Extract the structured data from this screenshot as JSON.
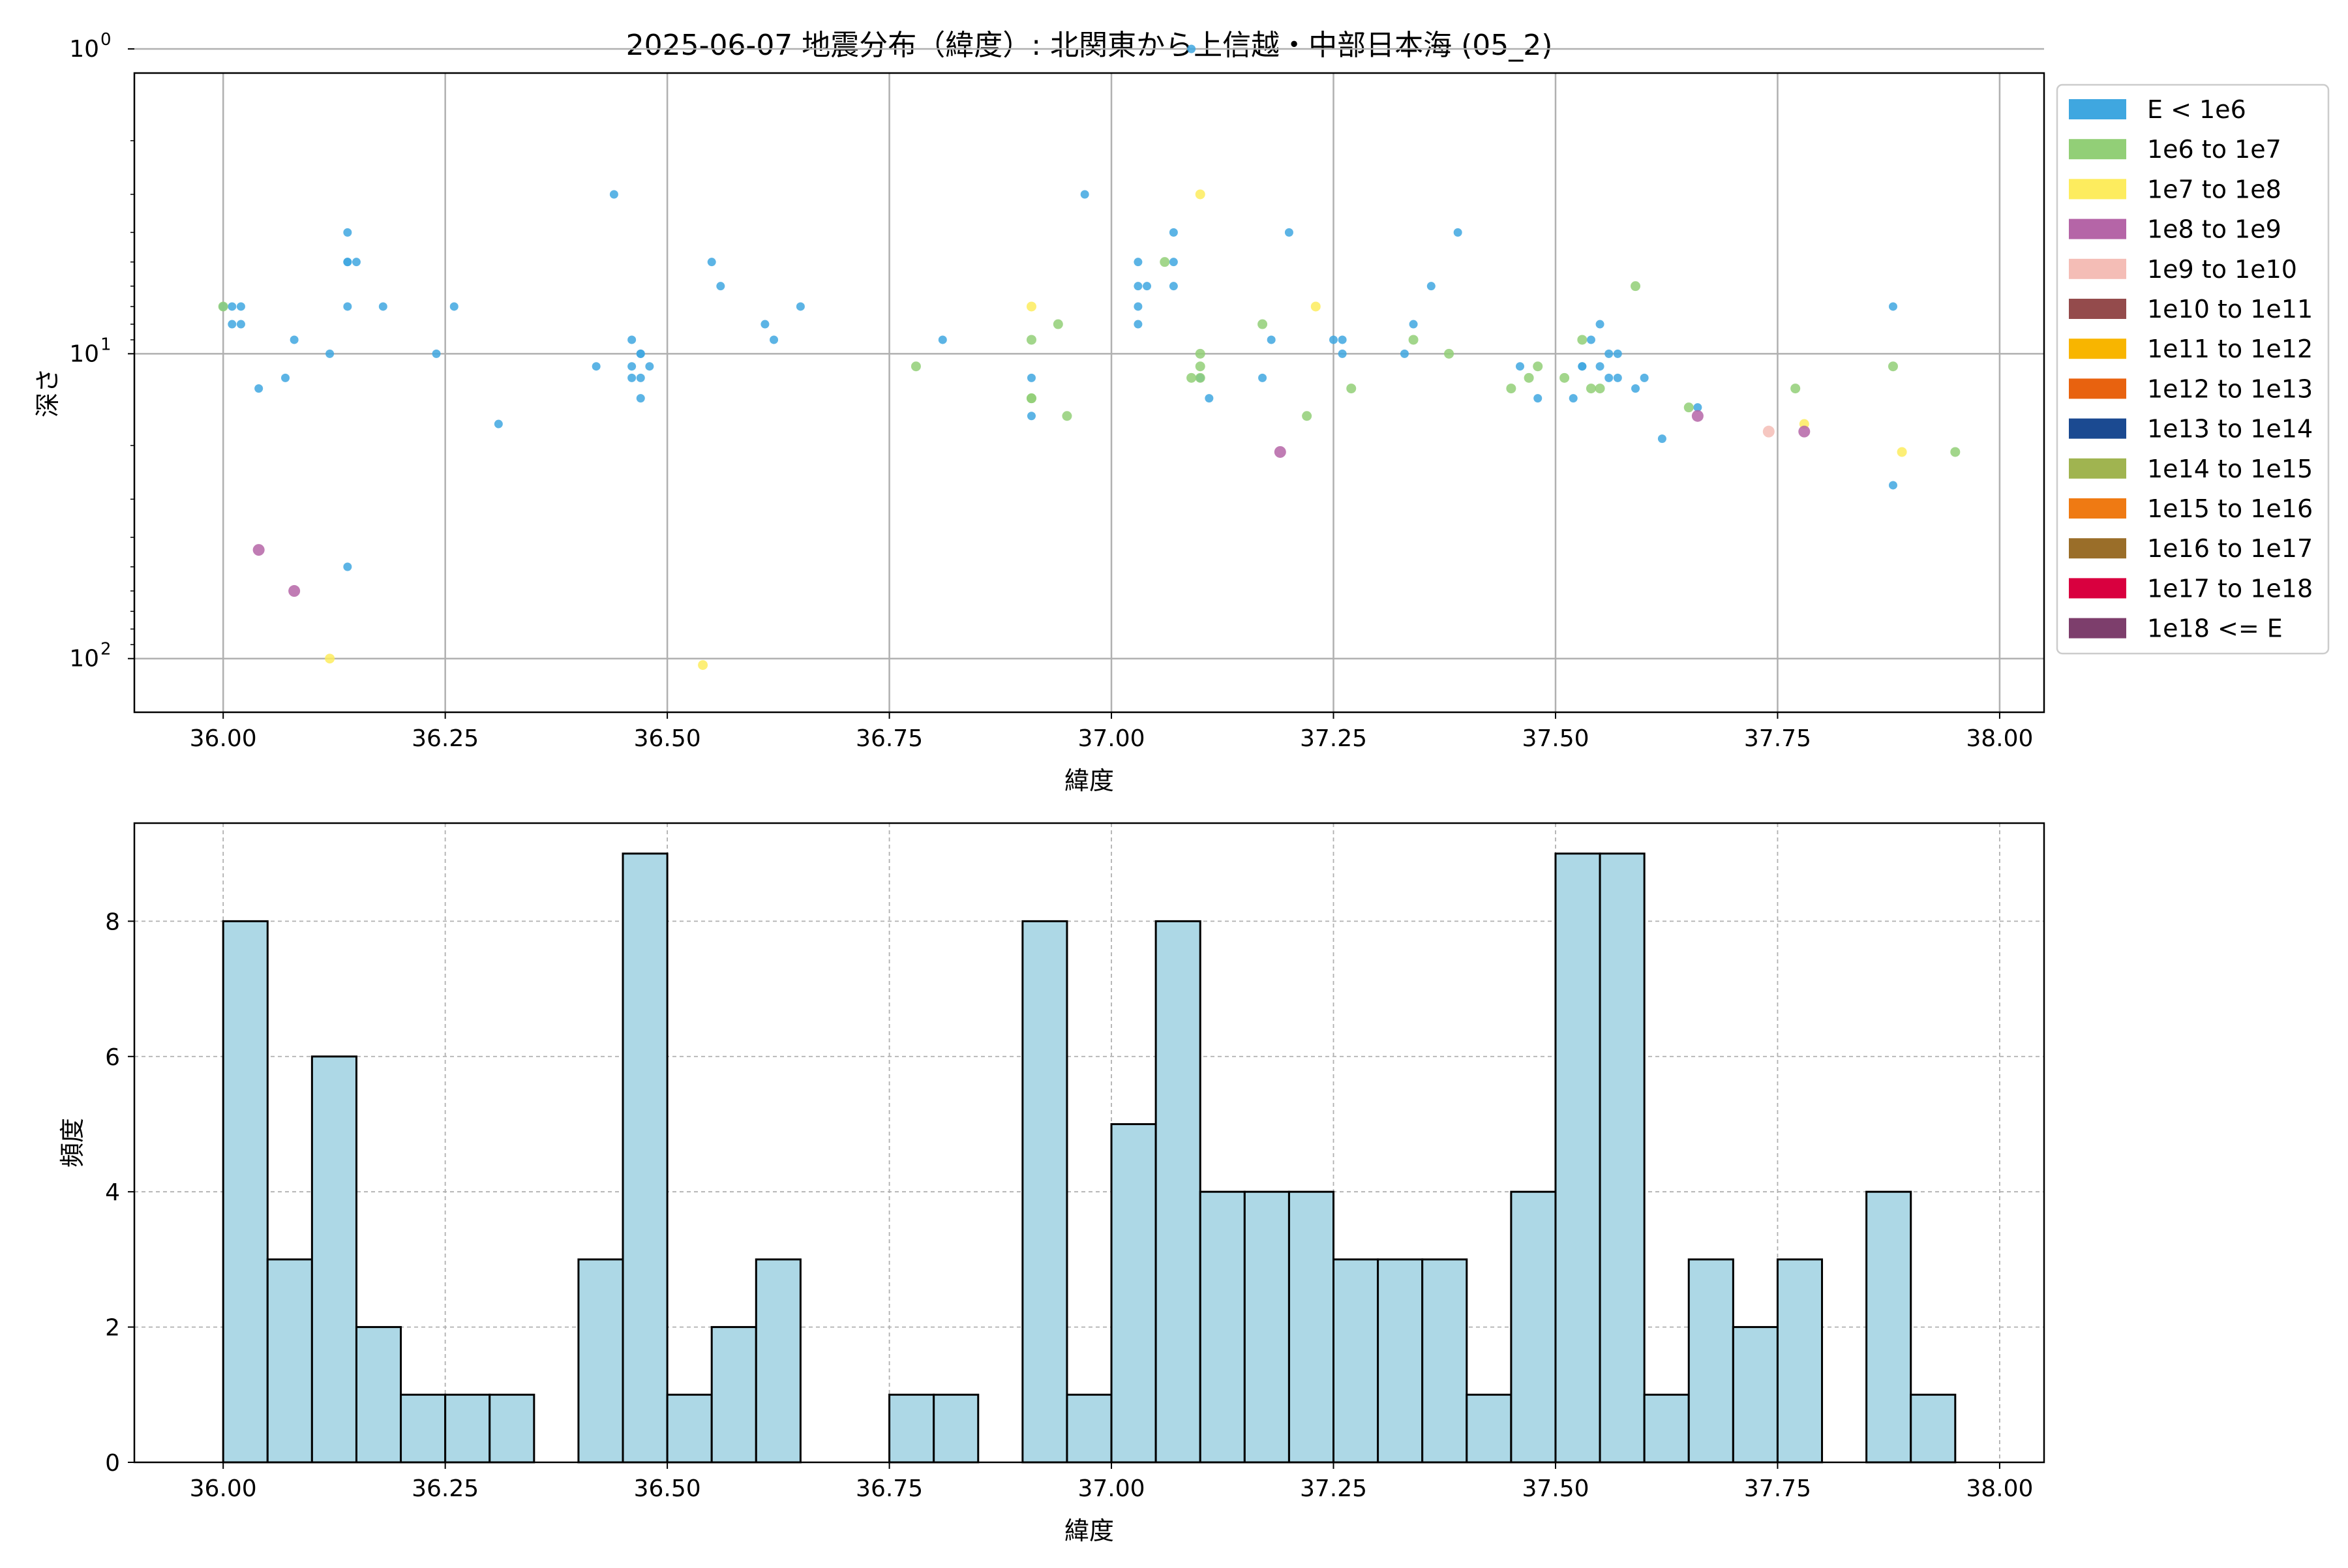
{
  "figure": {
    "title": "2025-06-07 地震分布（緯度）: 北関東から上信越・中部日本海 (05_2)"
  },
  "chart_data": [
    {
      "type": "scatter",
      "xlabel": "緯度",
      "ylabel": "深さ",
      "x_ticks": [
        "36.00",
        "36.25",
        "36.50",
        "36.75",
        "37.00",
        "37.25",
        "37.50",
        "37.75",
        "38.00"
      ],
      "x_tick_values": [
        36.0,
        36.25,
        36.5,
        36.75,
        37.0,
        37.25,
        37.5,
        37.75,
        38.0
      ],
      "xlim": [
        35.9,
        38.05
      ],
      "y_scale": "log",
      "y_inverted": true,
      "ylim": [
        1.2,
        150
      ],
      "y_ticks": [
        {
          "base": "10",
          "exp": "0",
          "value": 1
        },
        {
          "base": "10",
          "exp": "1",
          "value": 10
        },
        {
          "base": "10",
          "exp": "2",
          "value": 100
        }
      ],
      "grid": true,
      "legend_placement": "outside-right",
      "legend": [
        {
          "label": "E < 1e6",
          "color": "#3fa7e0"
        },
        {
          "label": "1e6 to 1e7",
          "color": "#92cf77"
        },
        {
          "label": "1e7 to 1e8",
          "color": "#fdec5e"
        },
        {
          "label": "1e8 to 1e9",
          "color": "#b565a7"
        },
        {
          "label": "1e9 to 1e10",
          "color": "#f4bdb6"
        },
        {
          "label": "1e10 to 1e11",
          "color": "#944b4c"
        },
        {
          "label": "1e11 to 1e12",
          "color": "#f8b500"
        },
        {
          "label": "1e12 to 1e13",
          "color": "#e8620f"
        },
        {
          "label": "1e13 to 1e14",
          "color": "#1b4a91"
        },
        {
          "label": "1e14 to 1e15",
          "color": "#a0b450"
        },
        {
          "label": "1e15 to 1e16",
          "color": "#ef7a13"
        },
        {
          "label": "1e16 to 1e17",
          "color": "#9a6e29"
        },
        {
          "label": "1e17 to 1e18",
          "color": "#d9003f"
        },
        {
          "label": "1e18 <= E",
          "color": "#7d3e6c"
        }
      ],
      "series": [
        {
          "class": 0,
          "points": [
            [
              36.0,
              7
            ],
            [
              36.01,
              8
            ],
            [
              36.01,
              7
            ],
            [
              36.02,
              8
            ],
            [
              36.02,
              7
            ],
            [
              36.04,
              13
            ],
            [
              36.07,
              12
            ],
            [
              36.08,
              9
            ],
            [
              36.12,
              10
            ],
            [
              36.14,
              5
            ],
            [
              36.14,
              5
            ],
            [
              36.14,
              4
            ],
            [
              36.14,
              7
            ],
            [
              36.15,
              5
            ],
            [
              36.18,
              7
            ],
            [
              36.24,
              10
            ],
            [
              36.26,
              7
            ],
            [
              36.31,
              17
            ],
            [
              36.42,
              11
            ],
            [
              36.44,
              3
            ],
            [
              36.46,
              11
            ],
            [
              36.46,
              9
            ],
            [
              36.47,
              10
            ],
            [
              36.47,
              12
            ],
            [
              36.47,
              10
            ],
            [
              36.48,
              11
            ],
            [
              36.47,
              14
            ],
            [
              36.46,
              12
            ],
            [
              36.55,
              5
            ],
            [
              36.56,
              6
            ],
            [
              36.61,
              8
            ],
            [
              36.62,
              9
            ],
            [
              36.65,
              7
            ],
            [
              36.81,
              9
            ],
            [
              36.91,
              16
            ],
            [
              36.91,
              12
            ],
            [
              36.97,
              3
            ],
            [
              37.03,
              5
            ],
            [
              37.03,
              6
            ],
            [
              37.03,
              7
            ],
            [
              37.03,
              8
            ],
            [
              37.04,
              6
            ],
            [
              37.07,
              4
            ],
            [
              37.07,
              5
            ],
            [
              37.07,
              6
            ],
            [
              37.09,
              1
            ],
            [
              37.1,
              12
            ],
            [
              37.11,
              14
            ],
            [
              37.17,
              12
            ],
            [
              37.18,
              9
            ],
            [
              37.2,
              4
            ],
            [
              37.25,
              9
            ],
            [
              37.26,
              9
            ],
            [
              37.26,
              10
            ],
            [
              37.33,
              10
            ],
            [
              37.34,
              8
            ],
            [
              37.36,
              6
            ],
            [
              37.39,
              4
            ],
            [
              37.46,
              11
            ],
            [
              37.48,
              14
            ],
            [
              37.52,
              14
            ],
            [
              37.53,
              11
            ],
            [
              37.53,
              11
            ],
            [
              37.54,
              9
            ],
            [
              37.55,
              8
            ],
            [
              37.55,
              11
            ],
            [
              37.56,
              10
            ],
            [
              37.56,
              12
            ],
            [
              37.57,
              12
            ],
            [
              37.57,
              10
            ],
            [
              37.59,
              13
            ],
            [
              37.6,
              12
            ],
            [
              37.62,
              19
            ],
            [
              37.66,
              15
            ],
            [
              37.88,
              27
            ],
            [
              37.88,
              7
            ],
            [
              36.14,
              50
            ]
          ]
        },
        {
          "class": 1,
          "points": [
            [
              36.0,
              7
            ],
            [
              36.78,
              11
            ],
            [
              36.91,
              14
            ],
            [
              36.91,
              14
            ],
            [
              36.91,
              9
            ],
            [
              36.94,
              8
            ],
            [
              36.95,
              16
            ],
            [
              37.06,
              5
            ],
            [
              37.09,
              12
            ],
            [
              37.1,
              10
            ],
            [
              37.1,
              12
            ],
            [
              37.1,
              11
            ],
            [
              37.17,
              8
            ],
            [
              37.22,
              16
            ],
            [
              37.27,
              13
            ],
            [
              37.34,
              9
            ],
            [
              37.38,
              10
            ],
            [
              37.45,
              13
            ],
            [
              37.47,
              12
            ],
            [
              37.48,
              11
            ],
            [
              37.51,
              12
            ],
            [
              37.53,
              9
            ],
            [
              37.54,
              13
            ],
            [
              37.55,
              13
            ],
            [
              37.59,
              6
            ],
            [
              37.65,
              15
            ],
            [
              37.77,
              13
            ],
            [
              37.88,
              11
            ],
            [
              37.95,
              21
            ]
          ]
        },
        {
          "class": 2,
          "points": [
            [
              36.12,
              100
            ],
            [
              36.54,
              105
            ],
            [
              36.91,
              7
            ],
            [
              37.1,
              3
            ],
            [
              37.23,
              7
            ],
            [
              37.78,
              17
            ],
            [
              37.89,
              21
            ]
          ]
        },
        {
          "class": 3,
          "points": [
            [
              36.04,
              44
            ],
            [
              36.08,
              60
            ],
            [
              37.19,
              21
            ],
            [
              37.66,
              16
            ],
            [
              37.78,
              18
            ]
          ]
        },
        {
          "class": 4,
          "points": [
            [
              37.74,
              18
            ]
          ]
        }
      ]
    },
    {
      "type": "bar",
      "xlabel": "緯度",
      "ylabel": "頻度",
      "x_ticks": [
        "36.00",
        "36.25",
        "36.50",
        "36.75",
        "37.00",
        "37.25",
        "37.50",
        "37.75",
        "38.00"
      ],
      "x_tick_values": [
        36.0,
        36.25,
        36.5,
        36.75,
        37.0,
        37.25,
        37.5,
        37.75,
        38.0
      ],
      "xlim": [
        35.9,
        38.05
      ],
      "y_ticks": [
        "0",
        "2",
        "4",
        "6",
        "8"
      ],
      "y_tick_values": [
        0,
        2,
        4,
        6,
        8
      ],
      "ylim": [
        0,
        9.45
      ],
      "grid": true,
      "bar_color": "#add8e6",
      "bin_start": 36.0,
      "bin_width": 0.05,
      "values": [
        8,
        3,
        6,
        2,
        1,
        1,
        1,
        0,
        3,
        9,
        1,
        2,
        3,
        0,
        0,
        1,
        1,
        0,
        8,
        1,
        5,
        8,
        4,
        4,
        4,
        3,
        3,
        3,
        1,
        4,
        9,
        9,
        1,
        3,
        2,
        3,
        0,
        4,
        1
      ]
    }
  ]
}
